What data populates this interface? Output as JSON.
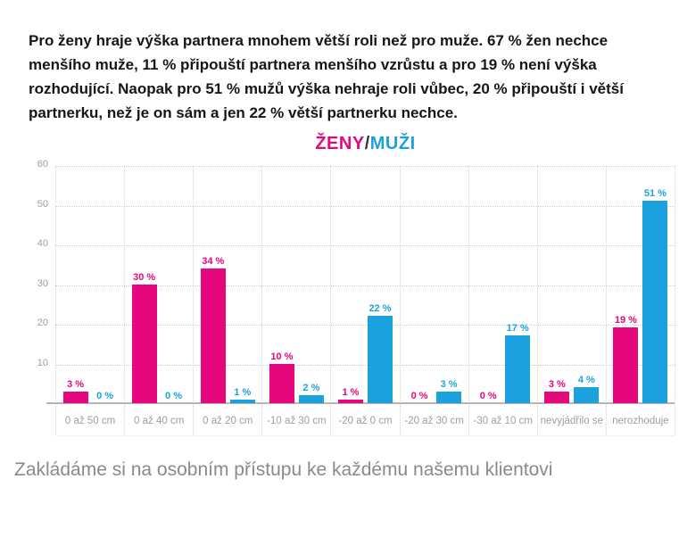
{
  "intro": {
    "text": "Pro ženy hraje výška partnera mnohem větší roli než pro muže. 67 % žen nechce menšího muže, 11 % připouští partnera menšího vzrůstu a pro 19 % není výška rozhodující. Naopak pro 51 % mužů výška nehraje roli vůbec, 20 % připouští i větší partnerku, než je on sám a jen 22 % větší partnerku nechce."
  },
  "chart_title": {
    "women": "ŽENY",
    "separator": "/",
    "men": "MUŽI"
  },
  "colors": {
    "women": "#e5077e",
    "men": "#1ba2de",
    "axis_text": "#9e9e9e",
    "grid": "#cbcbcb",
    "baseline": "#b5b5b5"
  },
  "chart_data": {
    "type": "bar",
    "title": "ŽENY/MUŽI",
    "categories": [
      "0 až 50 cm",
      "0 až 40 cm",
      "0 až 20 cm",
      "-10 až 30 cm",
      "-20 až 0 cm",
      "-20 až 30 cm",
      "-30 až 10 cm",
      "nevyjádřilo se",
      "nerozhoduje"
    ],
    "series": [
      {
        "name": "ŽENY",
        "color": "#e5077e",
        "values": [
          3,
          30,
          34,
          10,
          1,
          0,
          0,
          3,
          19
        ],
        "labels": [
          "3 %",
          "30 %",
          "34 %",
          "10 %",
          "1 %",
          "0 %",
          "0 %",
          "3 %",
          "19 %"
        ]
      },
      {
        "name": "MUŽI",
        "color": "#1ba2de",
        "values": [
          0,
          0,
          1,
          2,
          22,
          3,
          17,
          4,
          51
        ],
        "labels": [
          "0 %",
          "0 %",
          "1 %",
          "2 %",
          "22 %",
          "3 %",
          "17 %",
          "4 %",
          "51 %"
        ]
      }
    ],
    "xlabel": "",
    "ylabel": "",
    "ylim": [
      0,
      60
    ],
    "yticks": [
      10,
      20,
      30,
      40,
      50,
      60
    ],
    "grid": "dotted",
    "legend_position": "title"
  },
  "footer": {
    "text": "Zakládáme si na osobním přístupu ke každému našemu klientovi"
  }
}
